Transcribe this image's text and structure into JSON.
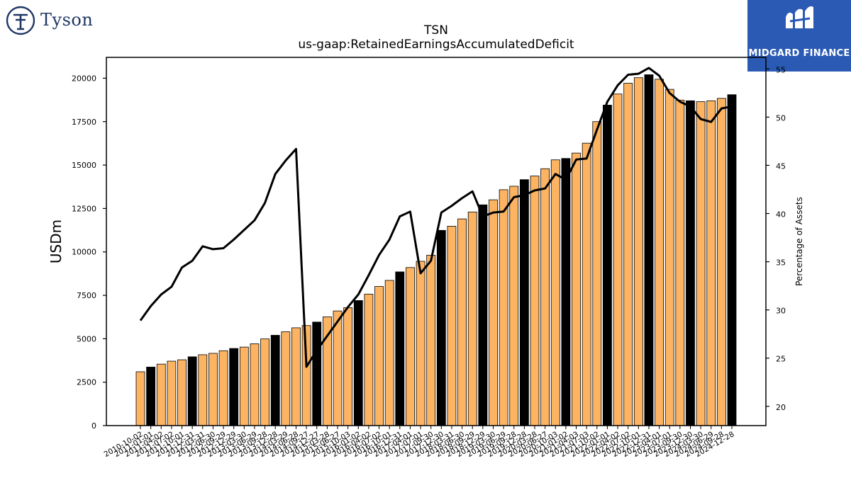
{
  "header": {
    "company_logo_text": "Tyson",
    "brand_badge_text": "MIDGARD FINANCE"
  },
  "colors": {
    "bar_default": "#fdb462",
    "bar_highlight": "#000000",
    "line": "#000000",
    "badge_bg": "#2a5ab4",
    "logo": "#1f3864"
  },
  "chart_data": {
    "type": "bar",
    "title": "TSN",
    "subtitle": "us-gaap:RetainedEarningsAccumulatedDeficit",
    "ylabel": "USDm",
    "y2label": "Percentage of Assets",
    "ylim": [
      0,
      21200
    ],
    "y2lim": [
      18,
      56.2
    ],
    "yticks": [
      0,
      2500,
      5000,
      7500,
      10000,
      12500,
      15000,
      17500,
      20000
    ],
    "y2ticks": [
      20,
      25,
      30,
      35,
      40,
      45,
      50,
      55
    ],
    "grid": false,
    "categories": [
      "2010-10-02",
      "2011-01-01",
      "2011-04-02",
      "2011-07-02",
      "2011-10-01",
      "2011-12-31",
      "2012-03-31",
      "2012-06-30",
      "2012-09-29",
      "2012-12-29",
      "2013-03-30",
      "2013-06-29",
      "2013-09-28",
      "2013-12-28",
      "2014-03-29",
      "2014-06-28",
      "2014-09-27",
      "2014-12-27",
      "2015-03-28",
      "2015-06-27",
      "2015-10-03",
      "2016-01-02",
      "2016-04-02",
      "2016-07-02",
      "2016-10-01",
      "2016-12-31",
      "2017-04-01",
      "2017-07-01",
      "2017-09-30",
      "2017-12-30",
      "2018-03-31",
      "2018-06-30",
      "2018-09-29",
      "2018-12-29",
      "2019-03-30",
      "2019-06-29",
      "2019-09-28",
      "2019-12-28",
      "2020-03-28",
      "2020-06-27",
      "2020-10-03",
      "2021-01-02",
      "2021-04-03",
      "2021-07-03",
      "2021-10-02",
      "2022-01-01",
      "2022-04-02",
      "2022-07-02",
      "2022-10-01",
      "2022-12-31",
      "2023-04-01",
      "2023-07-01",
      "2023-09-30",
      "2023-12-30",
      "2024-03-30",
      "2024-06-29",
      "2024-09-28",
      "2024-12-28"
    ],
    "series": [
      {
        "values": [
          3100,
          3370,
          3540,
          3710,
          3790,
          3960,
          4080,
          4160,
          4310,
          4440,
          4520,
          4710,
          4990,
          5200,
          5400,
          5630,
          5760,
          5960,
          6260,
          6600,
          6790,
          7200,
          7570,
          8010,
          8360,
          8850,
          9100,
          9460,
          9810,
          11240,
          11480,
          11900,
          12300,
          12710,
          13000,
          13580,
          13780,
          14160,
          14370,
          14790,
          15300,
          15380,
          15690,
          16260,
          17500,
          18450,
          19090,
          19710,
          20030,
          20200,
          19940,
          19360,
          18740,
          18700,
          18650,
          18700,
          18840,
          19050
        ],
        "highlight": [
          false,
          true,
          false,
          false,
          false,
          true,
          false,
          false,
          false,
          true,
          false,
          false,
          false,
          true,
          false,
          false,
          false,
          true,
          false,
          false,
          false,
          true,
          false,
          false,
          false,
          true,
          false,
          false,
          false,
          true,
          false,
          false,
          false,
          true,
          false,
          false,
          false,
          true,
          false,
          false,
          false,
          true,
          false,
          false,
          false,
          true,
          false,
          false,
          false,
          true,
          false,
          false,
          false,
          true,
          false,
          false,
          false,
          true
        ]
      },
      {
        "values": [
          28.9,
          30.4,
          31.6,
          32.4,
          34.4,
          35.1,
          36.6,
          36.3,
          36.4,
          37.3,
          38.3,
          39.3,
          41.1,
          44.1,
          45.5,
          46.7,
          24.1,
          25.8,
          27.3,
          28.8,
          30.3,
          31.6,
          33.6,
          35.7,
          37.3,
          39.7,
          40.2,
          33.8,
          35.1,
          40.1,
          40.8,
          41.6,
          42.3,
          39.7,
          40.1,
          40.2,
          41.7,
          41.9,
          42.4,
          42.6,
          44.1,
          43.5,
          45.6,
          45.7,
          48.7,
          51.6,
          53.3,
          54.4,
          54.5,
          55.1,
          54.3,
          52.5,
          51.6,
          51.1,
          49.8,
          49.5,
          50.9,
          51.1
        ]
      }
    ]
  }
}
